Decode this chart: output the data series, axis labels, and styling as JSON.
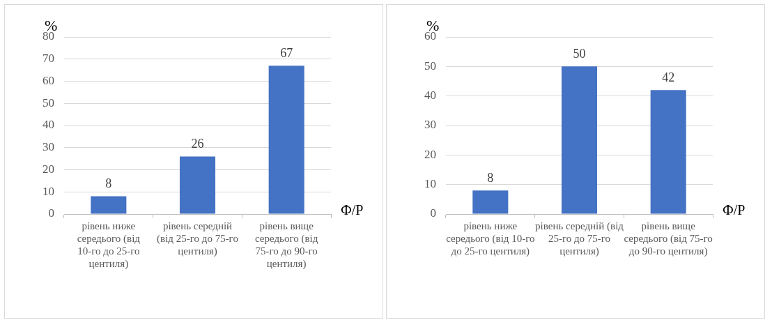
{
  "chart_data": [
    {
      "type": "bar",
      "ylabel": "%",
      "xlabel": "Ф/Р",
      "categories": [
        "рівень ниже середього (від 10-го до 25-го центиля)",
        "рівень середній (від 25-го до 75-го центиля)",
        "рівень вище середього (від 75-го до 90-го центиля)"
      ],
      "values": [
        8,
        26,
        67
      ],
      "color": "#4472c4",
      "ylim": [
        0,
        80
      ],
      "yticks": [
        0,
        10,
        20,
        30,
        40,
        50,
        60,
        70,
        80
      ],
      "grid": "y",
      "data_labels": true
    },
    {
      "type": "bar",
      "ylabel": "%",
      "xlabel": "Ф/Р",
      "categories": [
        "рівень ниже середього (від 10-го до 25-го центиля)",
        "рівень середній (від 25-го до 75-го центиля)",
        "рівень вище середього (від 75-го до 90-го центиля)"
      ],
      "values": [
        8,
        50,
        42
      ],
      "color": "#4472c4",
      "ylim": [
        0,
        60
      ],
      "yticks": [
        0,
        10,
        20,
        30,
        40,
        50,
        60
      ],
      "grid": "y",
      "data_labels": true
    }
  ]
}
